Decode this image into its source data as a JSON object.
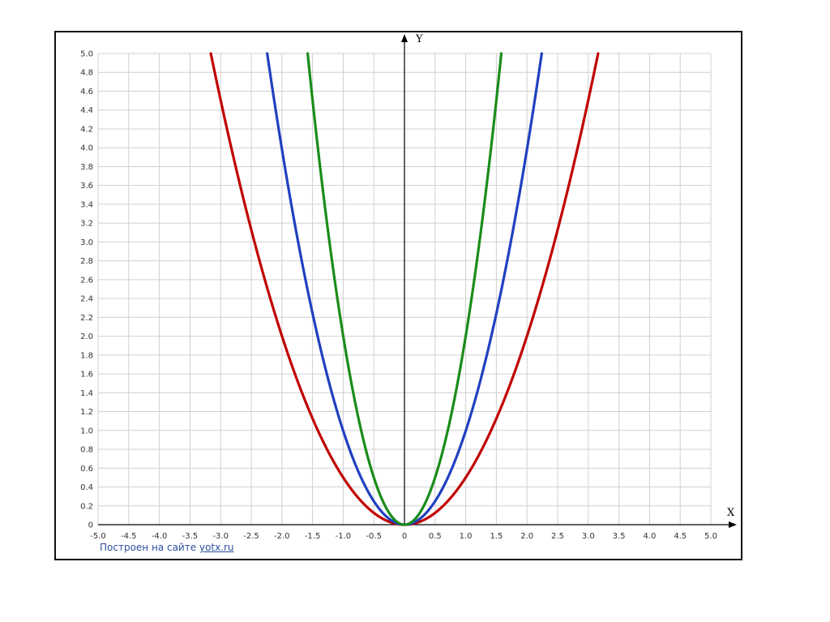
{
  "credit": {
    "prefix": "Построен на сайте",
    "link_text": "yotx.ru"
  },
  "chart_data": {
    "type": "line",
    "xlabel": "X",
    "ylabel": "Y",
    "xlim": [
      -5.0,
      5.0
    ],
    "ylim": [
      0,
      5.0
    ],
    "x_ticks": [
      "-5.0",
      "-4.5",
      "-4.0",
      "-3.5",
      "-3.0",
      "-2.5",
      "-2.0",
      "-1.5",
      "-1.0",
      "-0.5",
      "0",
      "0.5",
      "1.0",
      "1.5",
      "2.0",
      "2.5",
      "3.0",
      "3.5",
      "4.0",
      "4.5",
      "5.0"
    ],
    "y_ticks": [
      "0",
      "0.2",
      "0.4",
      "0.6",
      "0.8",
      "1.0",
      "1.2",
      "1.4",
      "1.6",
      "1.8",
      "2.0",
      "2.2",
      "2.4",
      "2.6",
      "2.8",
      "3.0",
      "3.2",
      "3.4",
      "3.6",
      "3.8",
      "4.0",
      "4.2",
      "4.4",
      "4.6",
      "4.8",
      "5.0"
    ],
    "grid": true,
    "series": [
      {
        "color": "#c00000",
        "x": [
          -3.16,
          -3.0,
          -2.5,
          -2.0,
          -1.5,
          -1.0,
          -0.5,
          0,
          0.5,
          1.0,
          1.5,
          2.0,
          2.5,
          3.0,
          3.16
        ],
        "y": [
          5.0,
          4.5,
          3.13,
          2.0,
          1.13,
          0.5,
          0.13,
          0,
          0.13,
          0.5,
          1.13,
          2.0,
          3.13,
          4.5,
          5.0
        ]
      },
      {
        "color": "#2040c0",
        "x": [
          -2.24,
          -2.0,
          -1.5,
          -1.0,
          -0.5,
          0,
          0.5,
          1.0,
          1.5,
          2.0,
          2.24
        ],
        "y": [
          5.0,
          4.0,
          2.25,
          1.0,
          0.25,
          0,
          0.25,
          1.0,
          2.25,
          4.0,
          5.0
        ]
      },
      {
        "color": "#1a8c1a",
        "x": [
          -1.58,
          -1.5,
          -1.25,
          -1.0,
          -0.75,
          -0.5,
          -0.25,
          0,
          0.25,
          0.5,
          0.75,
          1.0,
          1.25,
          1.5,
          1.58
        ],
        "y": [
          5.0,
          4.5,
          3.13,
          2.0,
          1.13,
          0.5,
          0.13,
          0,
          0.13,
          0.5,
          1.13,
          2.0,
          3.13,
          4.5,
          5.0
        ]
      }
    ]
  }
}
